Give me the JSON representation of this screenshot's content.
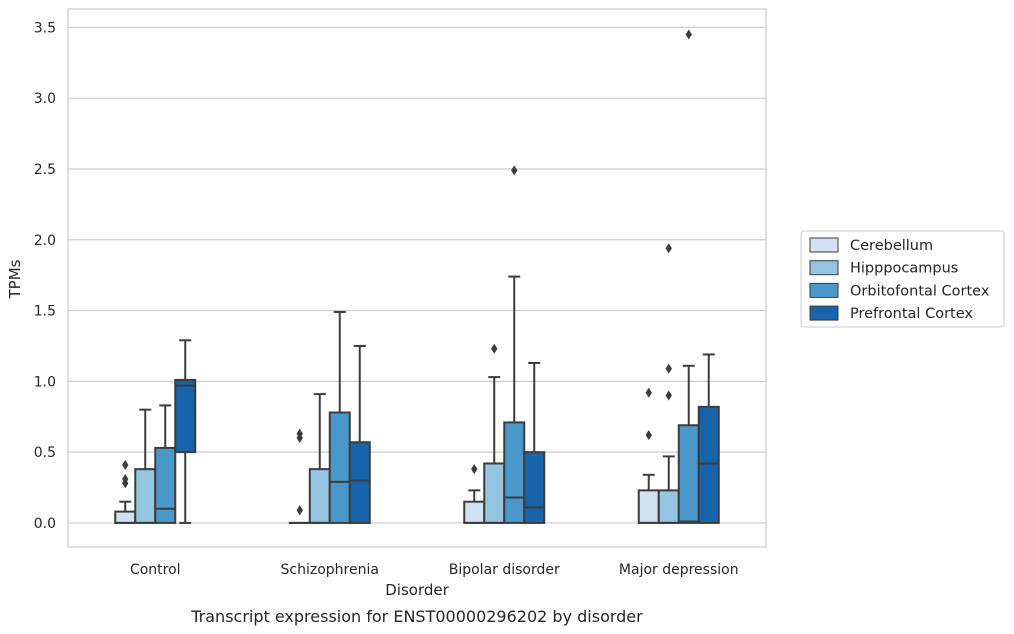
{
  "chart_data": {
    "type": "box",
    "title": "",
    "caption": "Transcript expression for ENST00000296202 by disorder",
    "xlabel": "Disorder",
    "ylabel": "TPMs",
    "ylim": [
      -0.17,
      3.63
    ],
    "yticks": [
      "0.0",
      "0.5",
      "1.0",
      "1.5",
      "2.0",
      "2.5",
      "3.0",
      "3.5"
    ],
    "grid": "horizontal",
    "legend_position": "right",
    "categories": [
      "Control",
      "Schizophrenia",
      "Bipolar disorder",
      "Major depression"
    ],
    "series": [
      {
        "name": "Cerebellum",
        "color": "#d0e1f2",
        "boxes": [
          {
            "whisker_low": 0.0,
            "q1": 0.0,
            "median": 0.0,
            "q3": 0.08,
            "whisker_high": 0.15,
            "outliers": [
              0.28,
              0.31,
              0.41
            ]
          },
          {
            "whisker_low": 0.0,
            "q1": 0.0,
            "median": 0.0,
            "q3": 0.0,
            "whisker_high": 0.0,
            "outliers": [
              0.09,
              0.6,
              0.63
            ]
          },
          {
            "whisker_low": 0.0,
            "q1": 0.0,
            "median": 0.0,
            "q3": 0.15,
            "whisker_high": 0.23,
            "outliers": [
              0.38
            ]
          },
          {
            "whisker_low": 0.0,
            "q1": 0.0,
            "median": 0.0,
            "q3": 0.23,
            "whisker_high": 0.34,
            "outliers": [
              0.62,
              0.92
            ]
          }
        ]
      },
      {
        "name": "Hipppocampus",
        "color": "#94c4df",
        "boxes": [
          {
            "whisker_low": 0.0,
            "q1": 0.0,
            "median": 0.0,
            "q3": 0.38,
            "whisker_high": 0.8,
            "outliers": []
          },
          {
            "whisker_low": 0.0,
            "q1": 0.0,
            "median": 0.0,
            "q3": 0.38,
            "whisker_high": 0.91,
            "outliers": []
          },
          {
            "whisker_low": 0.0,
            "q1": 0.0,
            "median": 0.0,
            "q3": 0.42,
            "whisker_high": 1.03,
            "outliers": [
              1.23
            ]
          },
          {
            "whisker_low": 0.0,
            "q1": 0.0,
            "median": 0.0,
            "q3": 0.23,
            "whisker_high": 0.47,
            "outliers": [
              0.9,
              1.09,
              1.94
            ]
          }
        ]
      },
      {
        "name": "Orbitofontal Cortex",
        "color": "#4a98c9",
        "boxes": [
          {
            "whisker_low": 0.0,
            "q1": 0.0,
            "median": 0.1,
            "q3": 0.53,
            "whisker_high": 0.83,
            "outliers": []
          },
          {
            "whisker_low": 0.0,
            "q1": 0.0,
            "median": 0.29,
            "q3": 0.78,
            "whisker_high": 1.49,
            "outliers": []
          },
          {
            "whisker_low": 0.0,
            "q1": 0.0,
            "median": 0.18,
            "q3": 0.71,
            "whisker_high": 1.74,
            "outliers": [
              2.49
            ]
          },
          {
            "whisker_low": 0.0,
            "q1": 0.0,
            "median": 0.01,
            "q3": 0.69,
            "whisker_high": 1.11,
            "outliers": [
              3.45
            ]
          }
        ]
      },
      {
        "name": "Prefrontal Cortex",
        "color": "#1764ab",
        "boxes": [
          {
            "whisker_low": 0.0,
            "q1": 0.5,
            "median": 0.97,
            "q3": 1.01,
            "whisker_high": 1.29,
            "outliers": []
          },
          {
            "whisker_low": 0.0,
            "q1": 0.0,
            "median": 0.3,
            "q3": 0.57,
            "whisker_high": 1.25,
            "outliers": []
          },
          {
            "whisker_low": 0.0,
            "q1": 0.0,
            "median": 0.11,
            "q3": 0.5,
            "whisker_high": 1.13,
            "outliers": []
          },
          {
            "whisker_low": 0.0,
            "q1": 0.0,
            "median": 0.42,
            "q3": 0.82,
            "whisker_high": 1.19,
            "outliers": []
          }
        ]
      }
    ]
  }
}
